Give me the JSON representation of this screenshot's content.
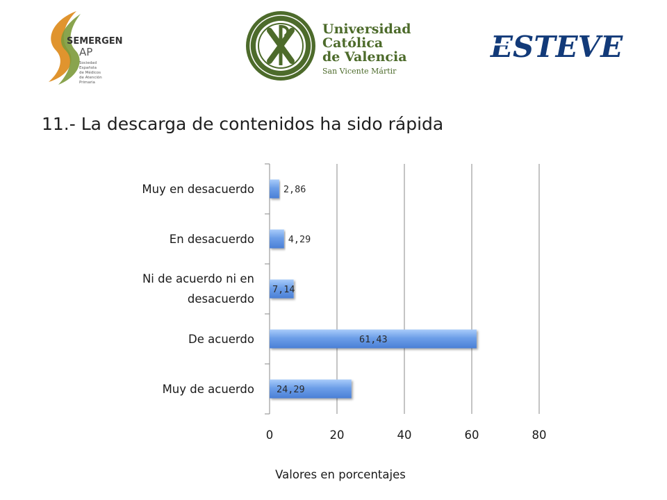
{
  "logos": {
    "semergen": {
      "name": "SEMERGEN",
      "suffix": "AP",
      "subtitle_lines": [
        "Sociedad",
        "Española",
        "de Médicos",
        "de Atención",
        "Primaria"
      ]
    },
    "ucv": {
      "lines": [
        "Universidad",
        "Católica",
        "de Valencia",
        "San Vicente Mártir"
      ]
    },
    "esteve": {
      "name": "ESTEVE"
    }
  },
  "colors": {
    "bar_fill": "#5b8fe0",
    "bar_fill_light": "#93bdf6",
    "ucv_green": "#4d6b2b",
    "semergen_green": "#7c9a3b",
    "semergen_orange": "#e0942e",
    "esteve_blue": "#123a79"
  },
  "chart_data": {
    "type": "bar",
    "orientation": "horizontal",
    "title": "11.- La descarga de contenidos ha sido rápida",
    "categories": [
      "Muy en desacuerdo",
      "En desacuerdo",
      "Ni de acuerdo ni en desacuerdo",
      "De acuerdo",
      "Muy de acuerdo"
    ],
    "category_label_lines": [
      [
        "Muy en desacuerdo"
      ],
      [
        "En desacuerdo"
      ],
      [
        "Ni de acuerdo ni en",
        "desacuerdo"
      ],
      [
        "De acuerdo"
      ],
      [
        "Muy de acuerdo"
      ]
    ],
    "values": [
      2.86,
      4.29,
      7.14,
      61.43,
      24.29
    ],
    "data_labels": [
      "2,86",
      "4,29",
      "7,14",
      "61,43",
      "24,29"
    ],
    "xlabel": "Valores en porcentajes",
    "ylabel": "",
    "xlim": [
      0,
      80
    ],
    "xticks": [
      0,
      20,
      40,
      60,
      80
    ],
    "grid": "vertical"
  }
}
